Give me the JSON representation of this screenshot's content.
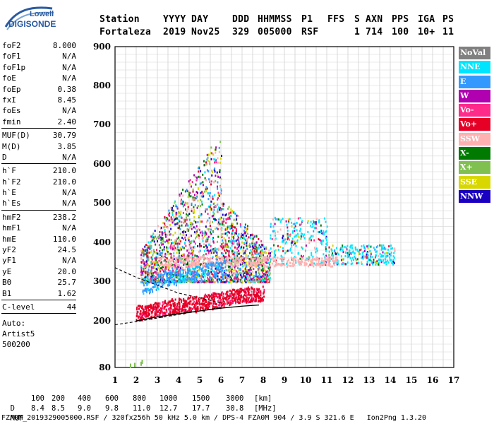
{
  "logo": {
    "line1": "Lowell",
    "line2": "DIGISONDE"
  },
  "header": {
    "row1": [
      "Station",
      "YYYY",
      "DAY",
      "DDD",
      "HHMMSS",
      "P1",
      "FFS",
      "S",
      "AXN",
      "PPS",
      "IGA",
      "PS"
    ],
    "row2": [
      "Fortaleza",
      "2019",
      "Nov25",
      "329",
      "005000",
      "RSF",
      "1",
      "714",
      "100",
      "10+",
      "11"
    ]
  },
  "params": {
    "group1": [
      {
        "label": "foF2",
        "value": "8.000"
      },
      {
        "label": "foF1",
        "value": "N/A"
      },
      {
        "label": "foF1p",
        "value": "N/A"
      },
      {
        "label": "foE",
        "value": "N/A"
      },
      {
        "label": "foEp",
        "value": "0.38"
      },
      {
        "label": "fxI",
        "value": "8.45"
      },
      {
        "label": "foEs",
        "value": "N/A"
      },
      {
        "label": "fmin",
        "value": "2.40"
      }
    ],
    "group2": [
      {
        "label": "MUF(D)",
        "value": "30.79"
      },
      {
        "label": "M(D)",
        "value": "3.85"
      },
      {
        "label": "D",
        "value": "N/A"
      }
    ],
    "group3": [
      {
        "label": "h`F",
        "value": "210.0"
      },
      {
        "label": "h`F2",
        "value": "210.0"
      },
      {
        "label": "h`E",
        "value": "N/A"
      },
      {
        "label": "h`Es",
        "value": "N/A"
      }
    ],
    "group4": [
      {
        "label": "hmF2",
        "value": "238.2"
      },
      {
        "label": "hmF1",
        "value": "N/A"
      },
      {
        "label": "hmE",
        "value": "110.0"
      },
      {
        "label": "yF2",
        "value": "24.5"
      },
      {
        "label": "yF1",
        "value": "N/A"
      },
      {
        "label": "yE",
        "value": "20.0"
      },
      {
        "label": "B0",
        "value": "25.7"
      },
      {
        "label": "B1",
        "value": "1.62"
      }
    ],
    "group5": [
      {
        "label": "C-level",
        "value": "44"
      }
    ],
    "auto": [
      "Auto:",
      "Artist5",
      "500200"
    ]
  },
  "legend": [
    {
      "label": "NoVal",
      "color": "#808080"
    },
    {
      "label": "NNE",
      "color": "#00e5ff"
    },
    {
      "label": "E",
      "color": "#3399ff"
    },
    {
      "label": "W",
      "color": "#b000b0"
    },
    {
      "label": "Vo-",
      "color": "#ff2a8a"
    },
    {
      "label": "Vo+",
      "color": "#e60026"
    },
    {
      "label": "SSW",
      "color": "#ffb0b0"
    },
    {
      "label": "X-",
      "color": "#007a00"
    },
    {
      "label": "X+",
      "color": "#80c050"
    },
    {
      "label": "SSE",
      "color": "#d8d800"
    },
    {
      "label": "NNW",
      "color": "#1a00c0"
    }
  ],
  "footer": {
    "d_label": "D",
    "d_values": [
      "100",
      "200",
      "400",
      "600",
      "800",
      "1000",
      "1500",
      "3000"
    ],
    "d_unit": "[km]",
    "muf_label": "MUF",
    "muf_values": [
      "8.4",
      "8.5",
      "9.0",
      "9.8",
      "11.0",
      "12.7",
      "17.7",
      "30.8"
    ],
    "muf_unit": "[MHz]",
    "fileline": "FZA0M_2019329005000.RSF / 320fx256h 50 kHz 5.0 km / DPS-4 FZA0M 904 / 3.9 S 321.6 E   Ion2Png 1.3.20"
  },
  "chart_data": {
    "type": "scatter",
    "xlim": [
      1,
      17
    ],
    "ylim": [
      80,
      900
    ],
    "x_ticks": [
      1,
      2,
      3,
      4,
      5,
      6,
      7,
      8,
      9,
      10,
      11,
      12,
      13,
      14,
      15,
      16,
      17
    ],
    "y_ticks": [
      80,
      200,
      300,
      400,
      500,
      600,
      700,
      800,
      900
    ],
    "grid": true,
    "legend_position": "right",
    "clusters": [
      {
        "name": "F2 O-trace",
        "color": "Vo+",
        "points": [
          [
            2.2,
            222
          ],
          [
            2.6,
            226
          ],
          [
            3.0,
            230
          ],
          [
            3.4,
            234
          ],
          [
            3.8,
            238
          ],
          [
            4.2,
            240
          ],
          [
            4.6,
            243
          ],
          [
            5.0,
            246
          ],
          [
            5.4,
            250
          ],
          [
            5.8,
            254
          ],
          [
            6.2,
            258
          ],
          [
            6.6,
            262
          ],
          [
            7.0,
            266
          ],
          [
            7.4,
            268
          ],
          [
            7.8,
            270
          ]
        ]
      },
      {
        "name": "F2 X-trace",
        "color": "E",
        "points": [
          [
            2.5,
            290
          ],
          [
            3.0,
            300
          ],
          [
            3.5,
            310
          ],
          [
            4.0,
            312
          ],
          [
            4.5,
            318
          ],
          [
            5.0,
            322
          ],
          [
            5.5,
            330
          ],
          [
            6.0,
            336
          ]
        ]
      },
      {
        "name": "Spread F",
        "color": "mixed",
        "x_range": [
          2.2,
          8.3
        ],
        "y_range": [
          300,
          700
        ]
      },
      {
        "name": "Spread F upper",
        "color": "mixed",
        "x_range": [
          8.3,
          14.2
        ],
        "y_range": [
          340,
          480
        ]
      }
    ],
    "profile_curve": [
      [
        2.0,
        200
      ],
      [
        3.0,
        210
      ],
      [
        4.0,
        218
      ],
      [
        5.0,
        225
      ],
      [
        6.0,
        232
      ],
      [
        7.0,
        237
      ],
      [
        7.8,
        240
      ]
    ],
    "dashed_curves": [
      [
        [
          1.0,
          335
        ],
        [
          2.0,
          310
        ],
        [
          3.0,
          290
        ],
        [
          4.0,
          270
        ],
        [
          5.0,
          258
        ],
        [
          6.0,
          245
        ]
      ],
      [
        [
          1.0,
          190
        ],
        [
          2.0,
          198
        ],
        [
          3.0,
          207
        ],
        [
          4.0,
          216
        ],
        [
          5.0,
          225
        ],
        [
          6.0,
          234
        ]
      ]
    ]
  }
}
